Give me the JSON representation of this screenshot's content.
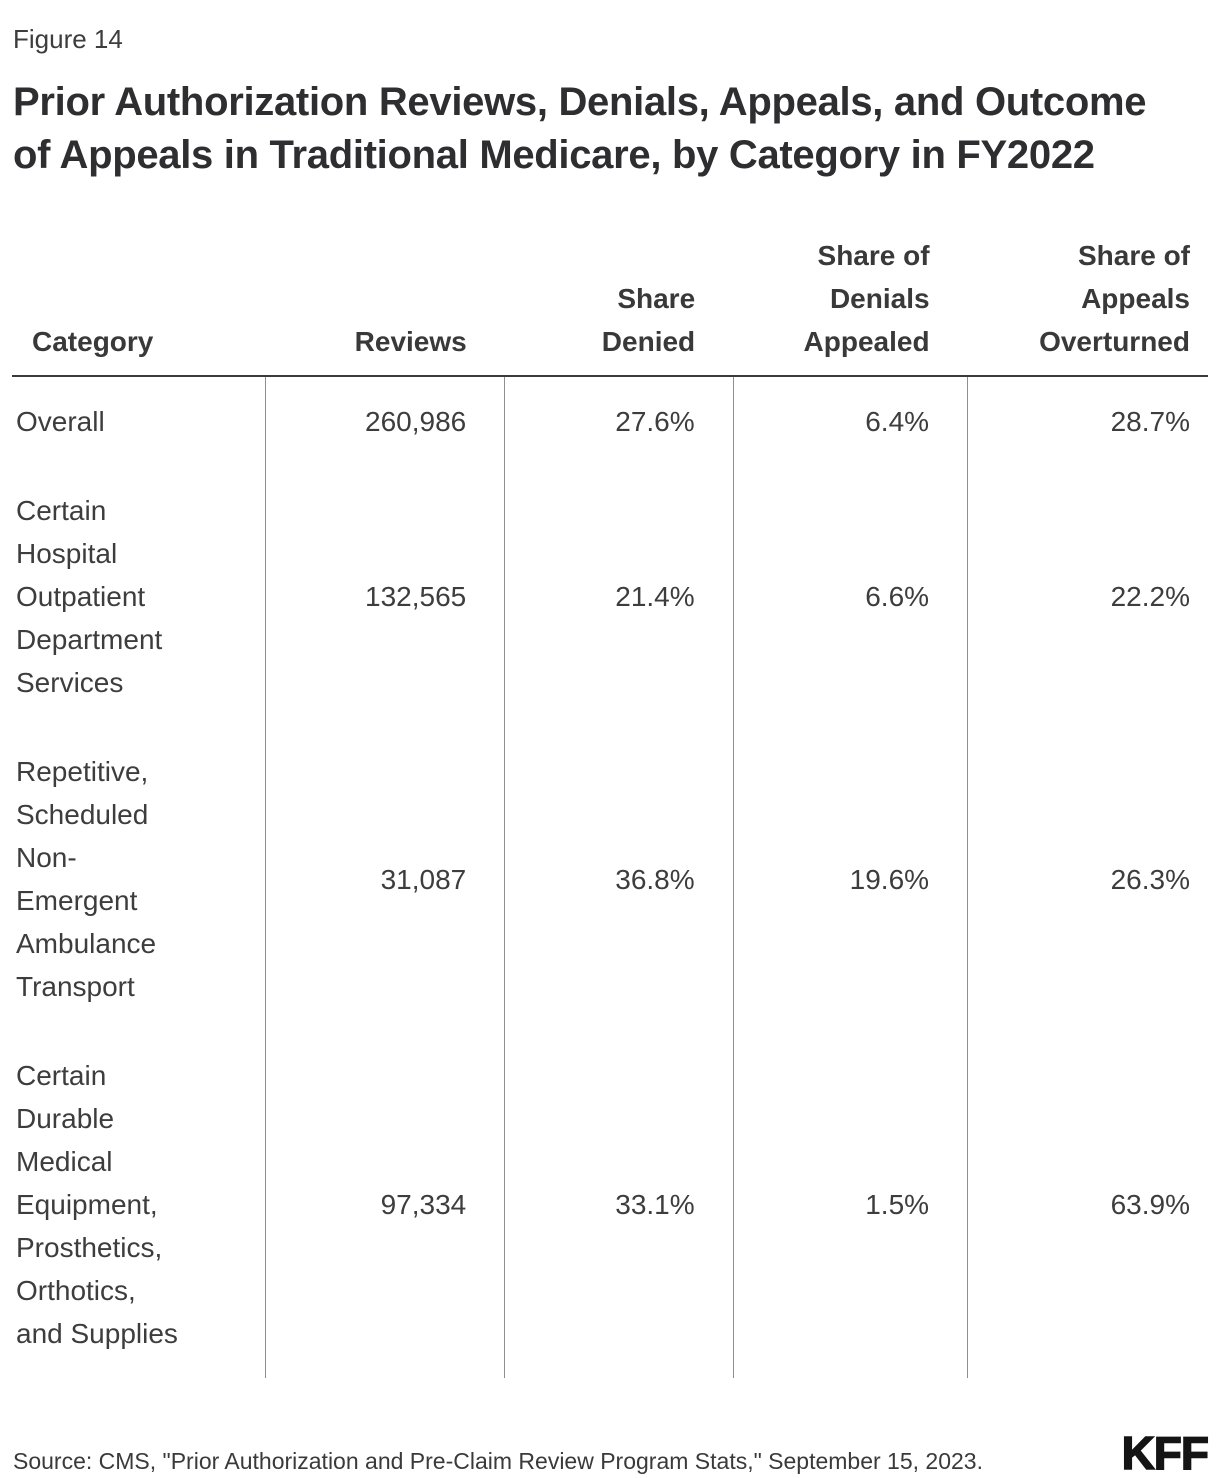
{
  "figure_label": "Figure 14",
  "title_display": "Prior Authorization Reviews, Denials, Appeals, and Outcome\nof Appeals in Traditional Medicare, by Category in FY2022",
  "table": {
    "columns": [
      {
        "label": "Category"
      },
      {
        "label": "Reviews"
      },
      {
        "label": "Share\nDenied"
      },
      {
        "label": "Share of\nDenials\nAppealed"
      },
      {
        "label": "Share of\nAppeals\nOverturned"
      }
    ],
    "rows": [
      {
        "category": "Overall",
        "reviews": "260,986",
        "share_denied": "27.6%",
        "share_of_denials_appealed": "6.4%",
        "share_of_appeals_overturned": "28.7%"
      },
      {
        "category": "Certain Hospital Outpatient Department Services",
        "reviews": "132,565",
        "share_denied": "21.4%",
        "share_of_denials_appealed": "6.6%",
        "share_of_appeals_overturned": "22.2%"
      },
      {
        "category": "Repetitive, Scheduled Non-Emergent Ambulance Transport",
        "reviews": "31,087",
        "share_denied": "36.8%",
        "share_of_denials_appealed": "19.6%",
        "share_of_appeals_overturned": "26.3%"
      },
      {
        "category": "Certain Durable Medical Equipment, Prosthetics, Orthotics, and Supplies",
        "reviews": "97,334",
        "share_denied": "33.1%",
        "share_of_denials_appealed": "1.5%",
        "share_of_appeals_overturned": "63.9%"
      }
    ]
  },
  "source": "Source: CMS, \"Prior Authorization and Pre-Claim Review Program Stats,\" September 15, 2023.",
  "logo_text": "KFF",
  "colors": {
    "text": "#3c3c3c",
    "title": "#2e2e31",
    "header_rule": "#3a3a3a",
    "column_rule": "#8e8e8e",
    "logo": "#141414",
    "background": "#ffffff"
  },
  "chart_data": {
    "type": "table",
    "title": "Prior Authorization Reviews, Denials, Appeals, and Outcome of Appeals in Traditional Medicare, by Category in FY2022",
    "figure_number": "Figure 14",
    "columns": [
      "Category",
      "Reviews",
      "Share Denied",
      "Share of Denials Appealed",
      "Share of Appeals Overturned"
    ],
    "rows": [
      [
        "Overall",
        260986,
        "27.6%",
        "6.4%",
        "28.7%"
      ],
      [
        "Certain Hospital Outpatient Department Services",
        132565,
        "21.4%",
        "6.6%",
        "22.2%"
      ],
      [
        "Repetitive, Scheduled Non-Emergent Ambulance Transport",
        31087,
        "36.8%",
        "19.6%",
        "26.3%"
      ],
      [
        "Certain Durable Medical Equipment, Prosthetics, Orthotics, and Supplies",
        97334,
        "33.1%",
        "1.5%",
        "63.9%"
      ]
    ],
    "source": "CMS, \"Prior Authorization and Pre-Claim Review Program Stats,\" September 15, 2023."
  }
}
